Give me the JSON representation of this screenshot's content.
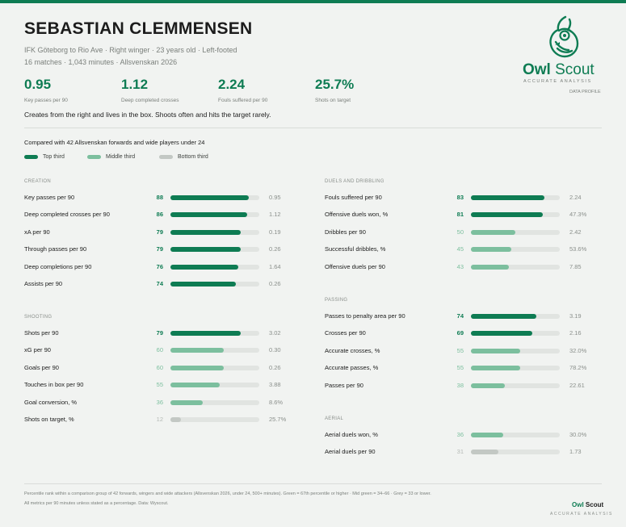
{
  "player": {
    "name": "SEBASTIAN CLEMMENSEN",
    "meta_line1": "IFK Göteborg to Rio Ave  ·  Right winger  ·  23 years old  ·  Left-footed",
    "meta_line2": "16 matches  ·  1,043 minutes  ·  Allsvenskan 2026"
  },
  "kpis": [
    {
      "value": "0.95",
      "label": "Key passes per 90"
    },
    {
      "value": "1.12",
      "label": "Deep completed crosses"
    },
    {
      "value": "2.24",
      "label": "Fouls suffered per 90"
    },
    {
      "value": "25.7%",
      "label": "Shots on target"
    }
  ],
  "summary": "Creates from the right and lives in the box. Shoots often and hits the target rarely.",
  "brand": {
    "name_part1": "Owl",
    "name_part2": "Scout",
    "tagline": "ACCURATE ANALYSIS",
    "profile_label": "DATA PROFILE",
    "icon": "owl-icon"
  },
  "comparison": "Compared with 42 Allsvenskan forwards and wide players under 24",
  "legend": [
    {
      "label": "Top third",
      "color": "#0e7c53"
    },
    {
      "label": "Middle third",
      "color": "#7cbf9e"
    },
    {
      "label": "Bottom third",
      "color": "#c3c8c4"
    }
  ],
  "sections": [
    {
      "title": "CREATION",
      "metrics": [
        {
          "label": "Key passes per 90",
          "percentile": 88,
          "value": "0.95"
        },
        {
          "label": "Deep completed crosses per 90",
          "percentile": 86,
          "value": "1.12"
        },
        {
          "label": "xA per 90",
          "percentile": 79,
          "value": "0.19"
        },
        {
          "label": "Through passes per 90",
          "percentile": 79,
          "value": "0.26"
        },
        {
          "label": "Deep completions per 90",
          "percentile": 76,
          "value": "1.64"
        },
        {
          "label": "Assists per 90",
          "percentile": 74,
          "value": "0.26"
        }
      ]
    },
    {
      "title": "SHOOTING",
      "metrics": [
        {
          "label": "Shots per 90",
          "percentile": 79,
          "value": "3.02"
        },
        {
          "label": "xG per 90",
          "percentile": 60,
          "value": "0.30"
        },
        {
          "label": "Goals per 90",
          "percentile": 60,
          "value": "0.26"
        },
        {
          "label": "Touches in box per 90",
          "percentile": 55,
          "value": "3.88"
        },
        {
          "label": "Goal conversion, %",
          "percentile": 36,
          "value": "8.6%"
        },
        {
          "label": "Shots on target, %",
          "percentile": 12,
          "value": "25.7%"
        }
      ]
    },
    {
      "title": "DUELS AND DRIBBLING",
      "metrics": [
        {
          "label": "Fouls suffered per 90",
          "percentile": 83,
          "value": "2.24"
        },
        {
          "label": "Offensive duels won, %",
          "percentile": 81,
          "value": "47.3%"
        },
        {
          "label": "Dribbles per 90",
          "percentile": 50,
          "value": "2.42"
        },
        {
          "label": "Successful dribbles, %",
          "percentile": 45,
          "value": "53.6%"
        },
        {
          "label": "Offensive duels per 90",
          "percentile": 43,
          "value": "7.85"
        }
      ]
    },
    {
      "title": "PASSING",
      "metrics": [
        {
          "label": "Passes to penalty area per 90",
          "percentile": 74,
          "value": "3.19"
        },
        {
          "label": "Crosses per 90",
          "percentile": 69,
          "value": "2.16"
        },
        {
          "label": "Accurate crosses, %",
          "percentile": 55,
          "value": "32.0%"
        },
        {
          "label": "Accurate passes, %",
          "percentile": 55,
          "value": "78.2%"
        },
        {
          "label": "Passes per 90",
          "percentile": 38,
          "value": "22.61"
        }
      ]
    },
    {
      "title": "AERIAL",
      "metrics": [
        {
          "label": "Aerial duels won, %",
          "percentile": 36,
          "value": "30.0%"
        },
        {
          "label": "Aerial duels per 90",
          "percentile": 31,
          "value": "1.73"
        }
      ]
    }
  ],
  "footer": {
    "note1": "Percentile rank within a comparison group of 42 forwards, wingers and wide attackers (Allsvenskan 2026, under 24, 500+ minutes). Green = 67th percentile or higher · Mid green = 34–66 · Grey = 33 or lower.",
    "note2": "All metrics per 90 minutes unless stated as a percentage. Data: Wyscout.",
    "brand1": "Owl",
    "brand2": "Scout",
    "tagline": "ACCURATE ANALYSIS"
  }
}
